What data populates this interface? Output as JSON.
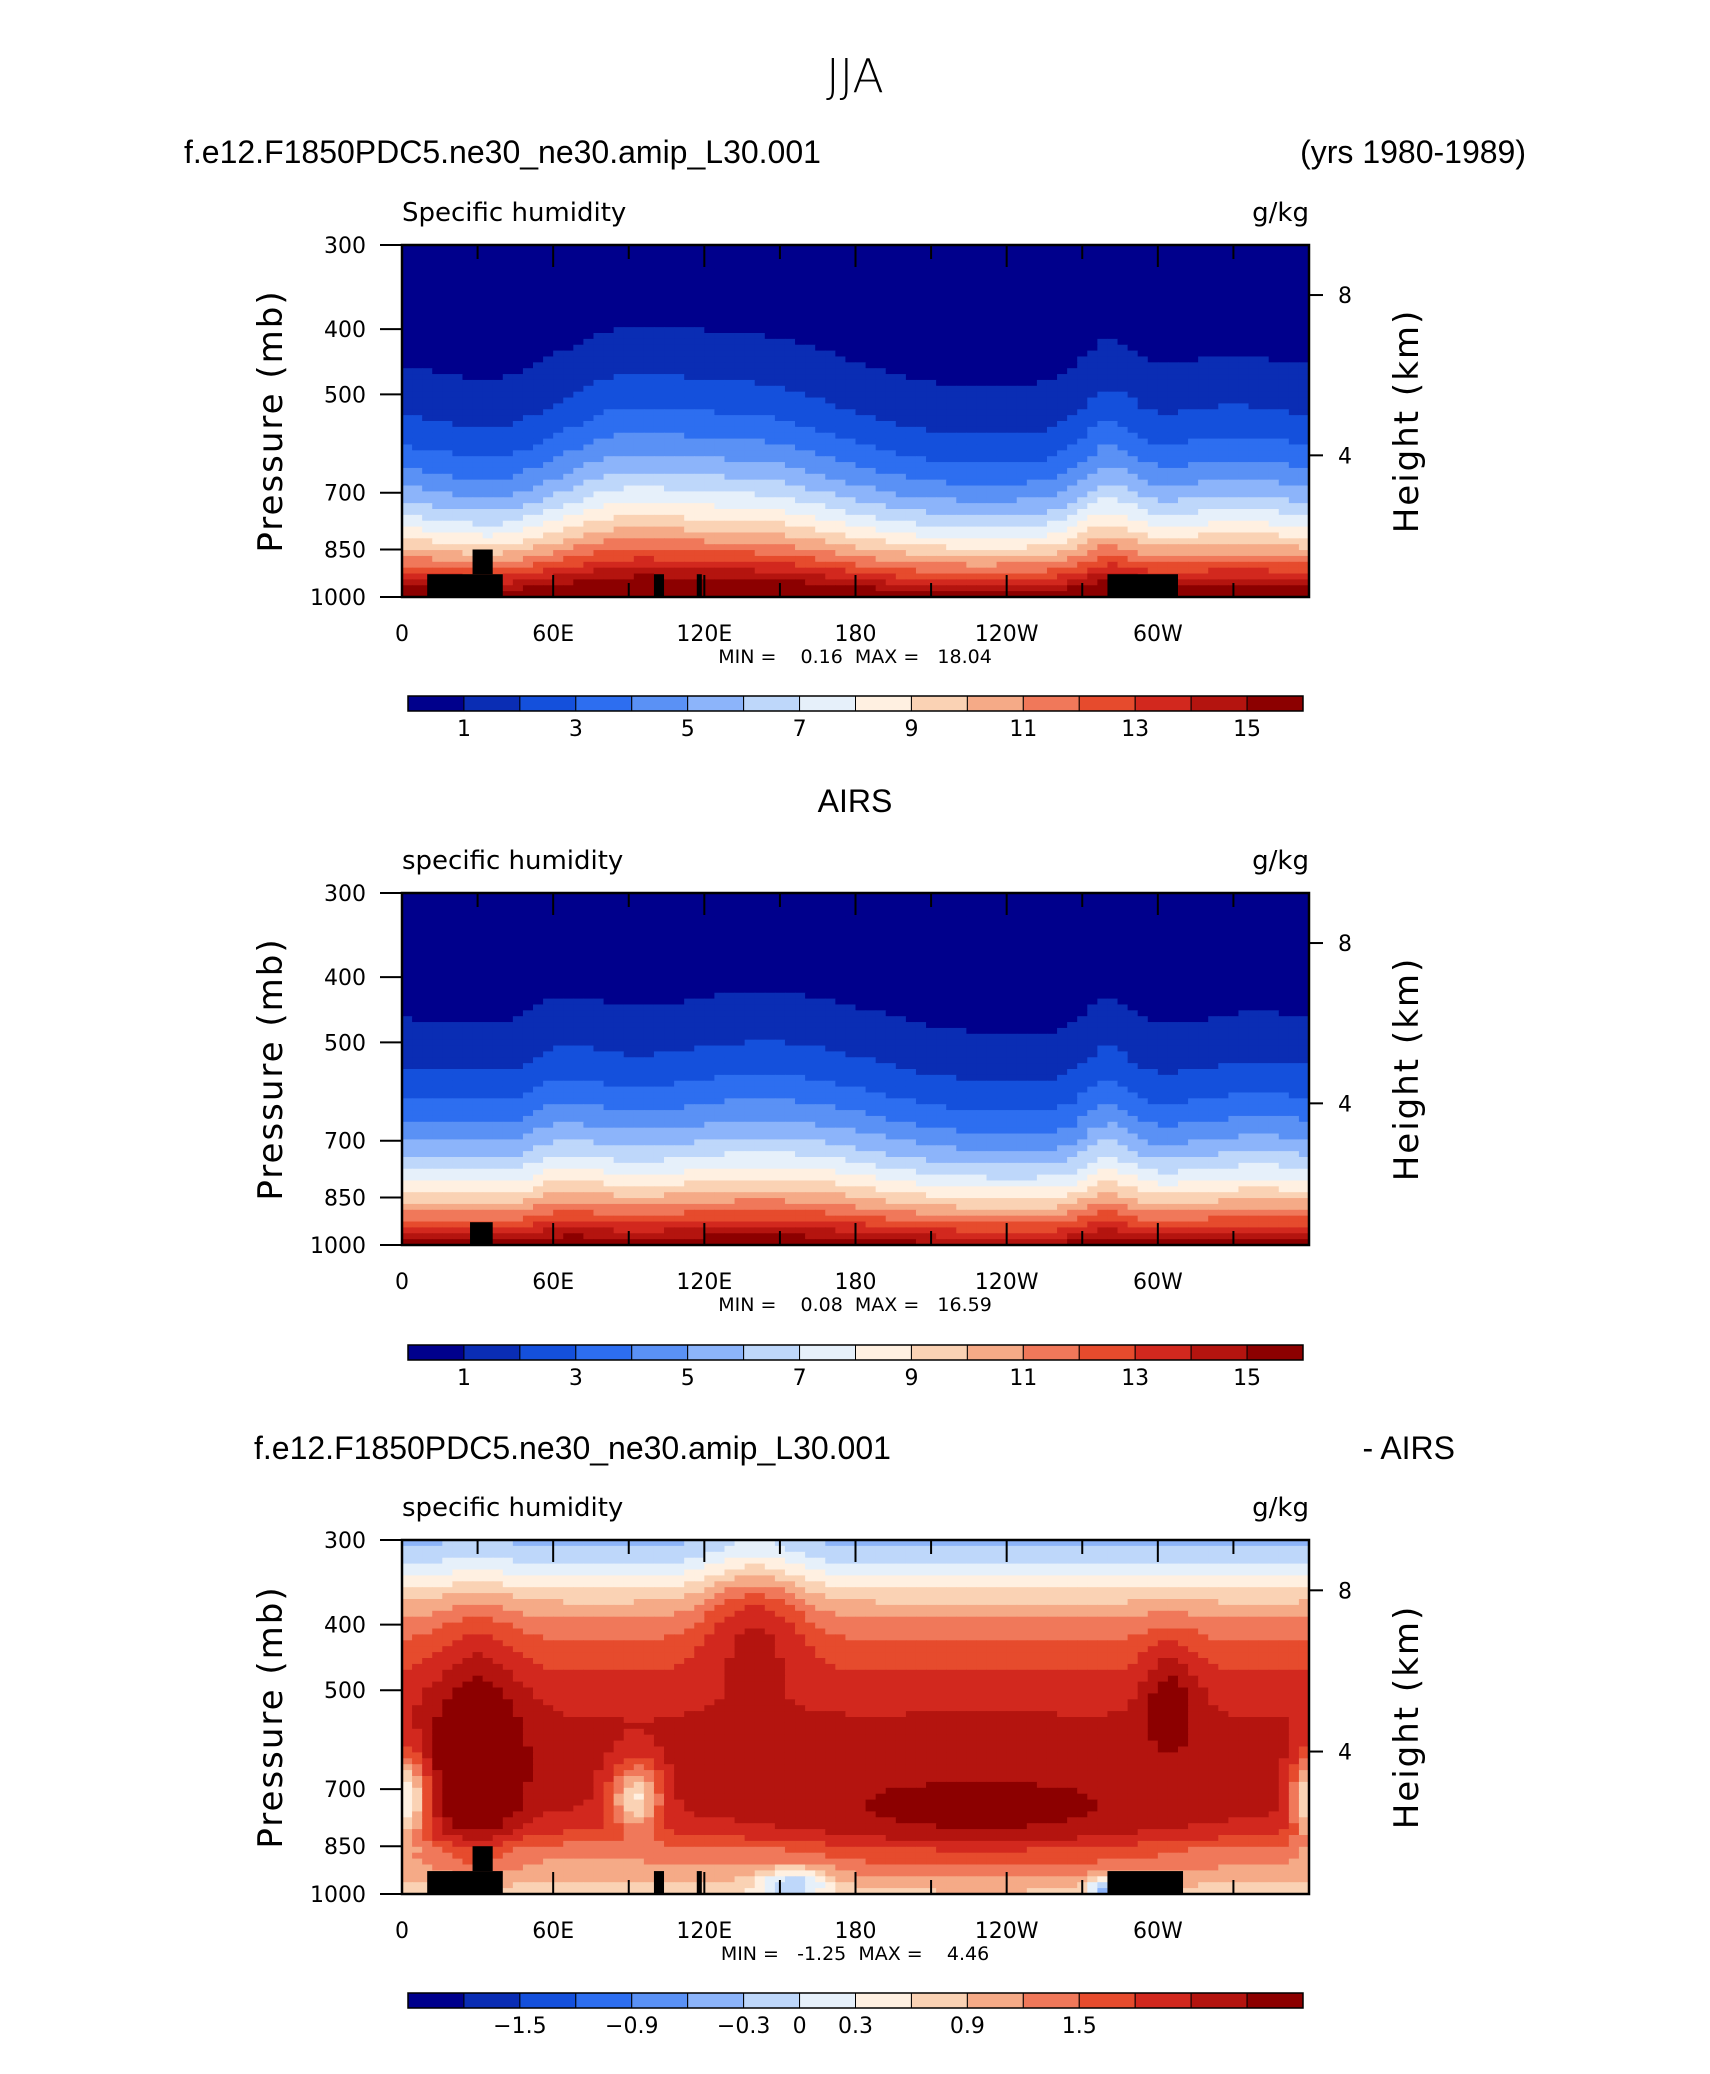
{
  "figure": {
    "season": "JJA",
    "model": "f.e12.F1850PDC5.ne30_ne30.amip_L30.001",
    "years": "(yrs 1980-1989)",
    "obs_title": "AIRS",
    "diff_suffix": "- AIRS"
  },
  "colors": {
    "scale": [
      "#00008c",
      "#0a2db4",
      "#1450dc",
      "#2d6ef0",
      "#5a91f5",
      "#8cb4fa",
      "#bed7fa",
      "#e6f0fa",
      "#fff0e1",
      "#fad2b4",
      "#f5aa87",
      "#f0785a",
      "#e64b2d",
      "#d2281e",
      "#b4140f",
      "#8c0000"
    ]
  },
  "chart_data": [
    {
      "type": "heatmap",
      "panel": "model",
      "left_label": "Specific humidity",
      "units": "g/kg",
      "ylabel": "Pressure (mb)",
      "ylabel_right": "Height (km)",
      "y_ticks": [
        300,
        400,
        500,
        700,
        850,
        1000
      ],
      "y_right_ticks": [
        "8",
        "4"
      ],
      "x_ticks": [
        "0",
        "60E",
        "120E",
        "180",
        "120W",
        "60W"
      ],
      "minmax": "MIN =    0.16  MAX =   18.04",
      "colorbar_levels": [
        0,
        1,
        2,
        3,
        4,
        5,
        6,
        7,
        8,
        9,
        10,
        11,
        12,
        13,
        14,
        15
      ],
      "colorbar_labels": [
        "1",
        "3",
        "5",
        "7",
        "9",
        "11",
        "13",
        "15"
      ],
      "min": 0.16,
      "max": 18.04,
      "terrain_blocks": [
        [
          10,
          40,
          1000,
          925
        ],
        [
          28,
          36,
          925,
          850
        ],
        [
          100,
          104,
          1000,
          925
        ],
        [
          117,
          119,
          1000,
          925
        ],
        [
          280,
          308,
          1000,
          925
        ]
      ]
    },
    {
      "type": "heatmap",
      "panel": "obs",
      "left_label": "specific humidity",
      "units": "g/kg",
      "ylabel": "Pressure (mb)",
      "ylabel_right": "Height (km)",
      "y_ticks": [
        300,
        400,
        500,
        700,
        850,
        1000
      ],
      "y_right_ticks": [
        "8",
        "4"
      ],
      "x_ticks": [
        "0",
        "60E",
        "120E",
        "180",
        "120W",
        "60W"
      ],
      "minmax": "MIN =    0.08  MAX =   16.59",
      "colorbar_levels": [
        0,
        1,
        2,
        3,
        4,
        5,
        6,
        7,
        8,
        9,
        10,
        11,
        12,
        13,
        14,
        15
      ],
      "colorbar_labels": [
        "1",
        "3",
        "5",
        "7",
        "9",
        "11",
        "13",
        "15"
      ],
      "min": 0.08,
      "max": 16.59,
      "terrain_blocks": [
        [
          27,
          36,
          1000,
          925
        ]
      ]
    },
    {
      "type": "heatmap",
      "panel": "diff",
      "left_label": "specific humidity",
      "units": "g/kg",
      "ylabel": "Pressure (mb)",
      "ylabel_right": "Height (km)",
      "y_ticks": [
        300,
        400,
        500,
        700,
        850,
        1000
      ],
      "y_right_ticks": [
        "8",
        "4"
      ],
      "x_ticks": [
        "0",
        "60E",
        "120E",
        "180",
        "120W",
        "60W"
      ],
      "minmax": "MIN =   -1.25  MAX =    4.46",
      "colorbar_levels": [
        -2.1,
        -1.8,
        -1.5,
        -1.2,
        -0.9,
        -0.6,
        -0.3,
        0,
        0.3,
        0.6,
        0.9,
        1.2,
        1.5,
        1.8,
        2.1,
        2.4
      ],
      "colorbar_labels": [
        "-1.5",
        "-0.9",
        "-0.3",
        "0",
        "0.3",
        "0.9",
        "1.5"
      ],
      "min": -1.25,
      "max": 4.46,
      "terrain_blocks": [
        [
          10,
          40,
          1000,
          925
        ],
        [
          28,
          36,
          925,
          850
        ],
        [
          100,
          104,
          1000,
          925
        ],
        [
          117,
          119,
          1000,
          925
        ],
        [
          280,
          310,
          1000,
          925
        ]
      ]
    }
  ]
}
